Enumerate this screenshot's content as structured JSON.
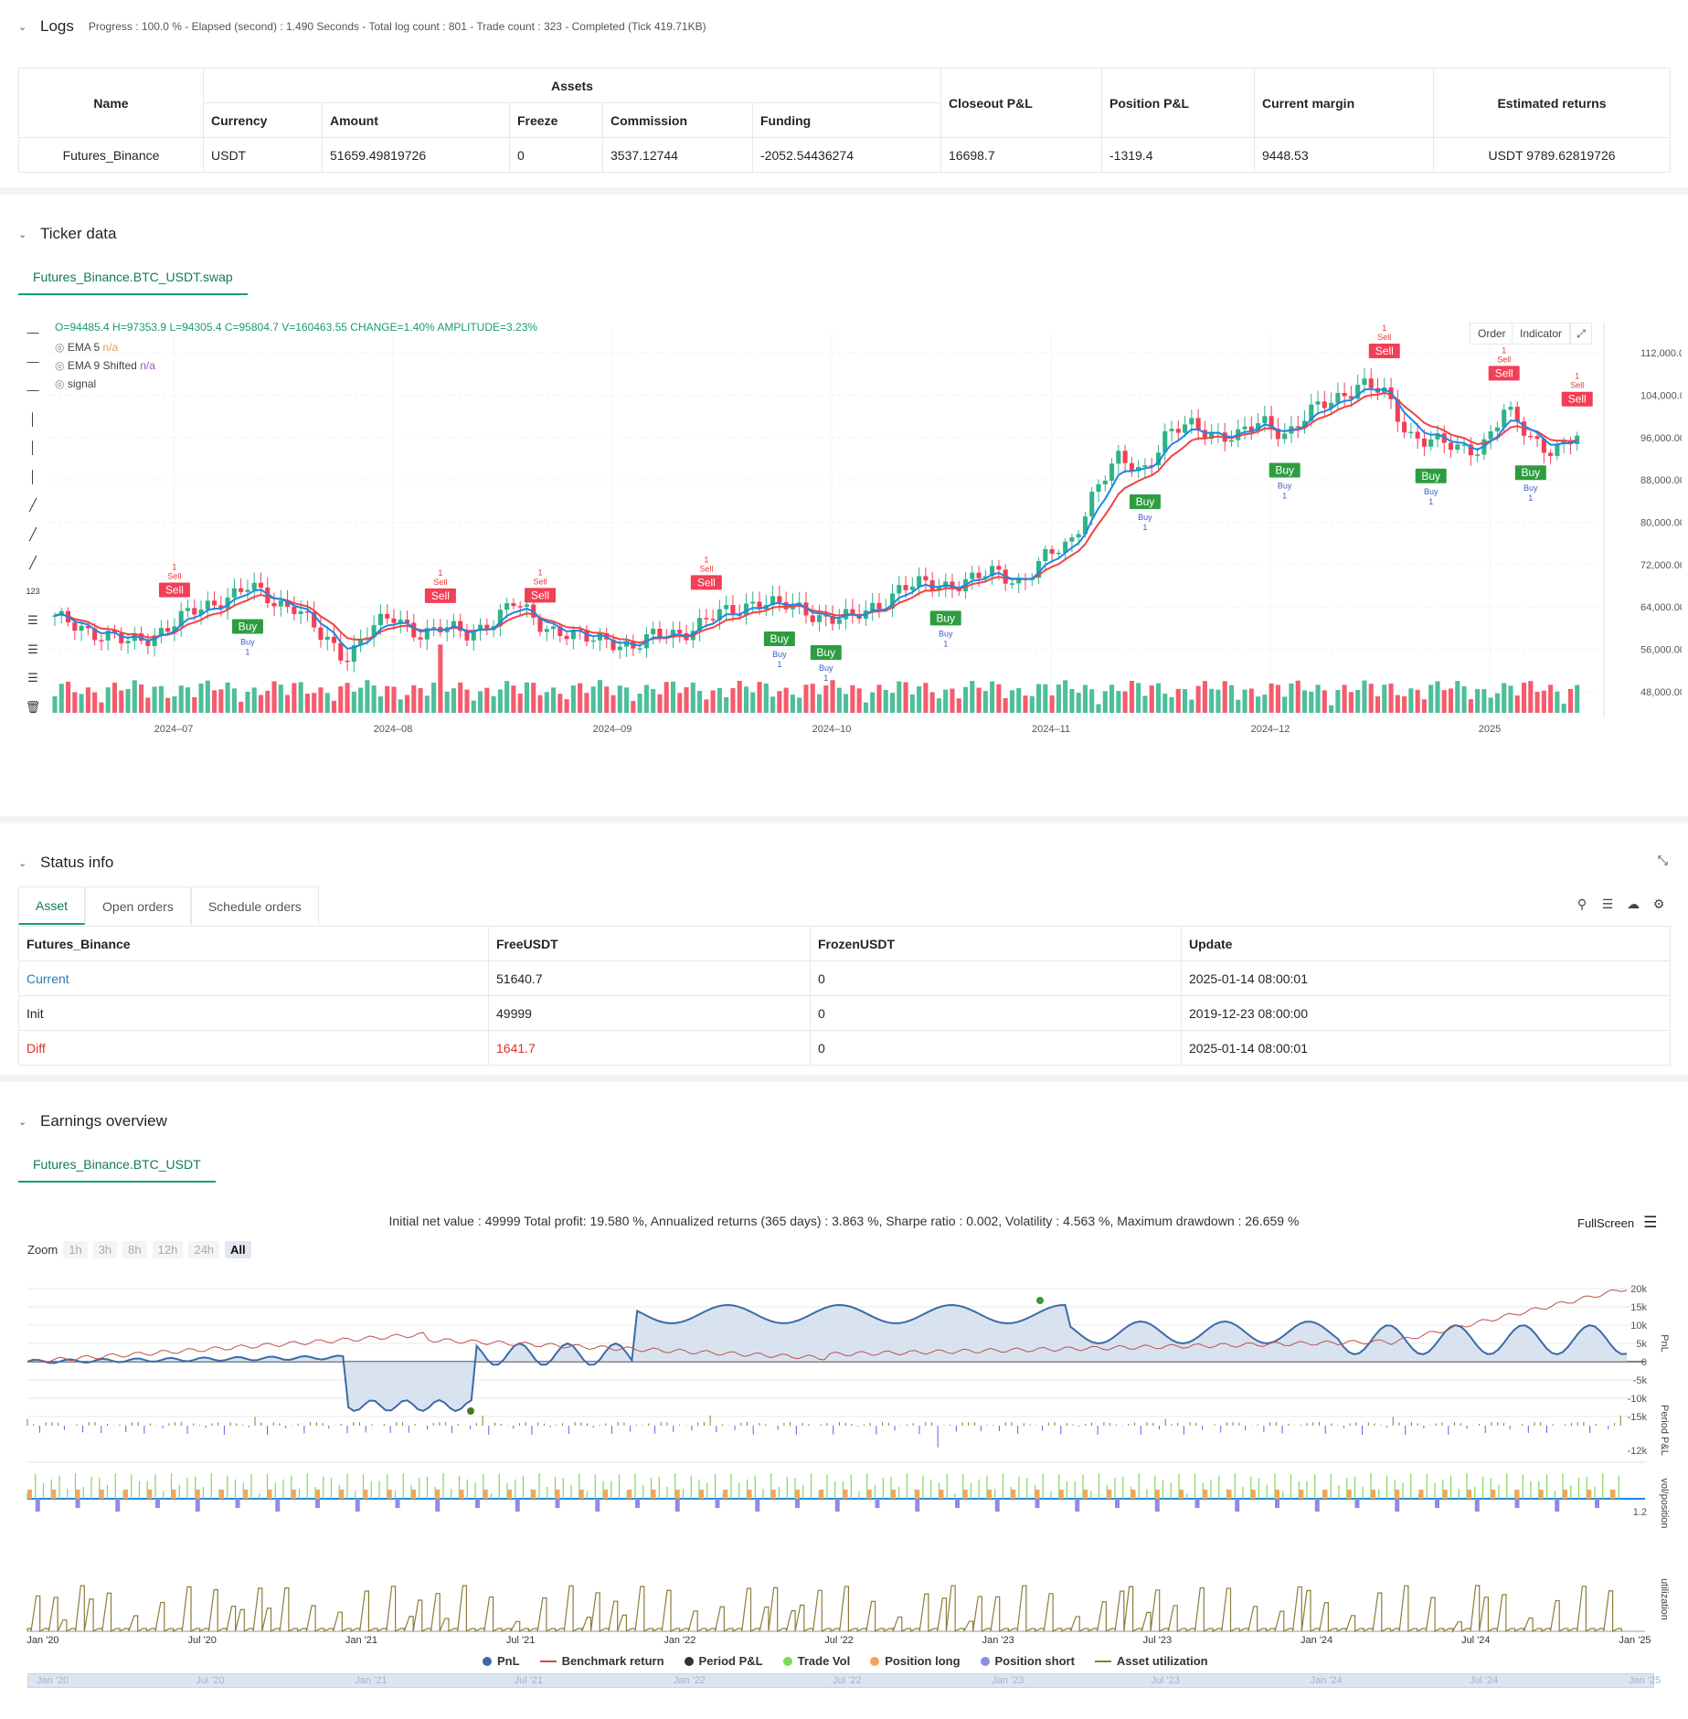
{
  "logs": {
    "title": "Logs",
    "info": "Progress : 100.0 % - Elapsed (second) : 1.490  Seconds - Total log count : 801 - Trade count : 323 - Completed (Tick 419.71KB)"
  },
  "assets_table": {
    "h_name": "Name",
    "h_assets": "Assets",
    "h_currency": "Currency",
    "h_amount": "Amount",
    "h_freeze": "Freeze",
    "h_commission": "Commission",
    "h_funding": "Funding",
    "h_closeout": "Closeout P&L",
    "h_position": "Position P&L",
    "h_margin": "Current margin",
    "h_returns": "Estimated returns",
    "row": {
      "name": "Futures_Binance",
      "currency": "USDT",
      "amount": "51659.49819726",
      "freeze": "0",
      "commission": "3537.12744",
      "funding": "-2052.54436274",
      "closeout": "16698.7",
      "position": "-1319.4",
      "margin": "9448.53",
      "returns": "USDT 9789.62819726"
    }
  },
  "ticker": {
    "title": "Ticker data",
    "tab": "Futures_Binance.BTC_USDT.swap",
    "ohlc": "O=94485.4  H=97353.9  L=94305.4  C=95804.7  V=160463.55  CHANGE=1.40%  AMPLITUDE=3.23%",
    "legend": [
      {
        "name": "EMA 5",
        "value": "n/a",
        "color": "#f2994a"
      },
      {
        "name": "EMA 9 Shifted",
        "value": "n/a",
        "color": "#9b59b6"
      },
      {
        "name": "signal",
        "value": "",
        "color": "#555555"
      }
    ],
    "btn_order": "Order",
    "btn_indicator": "Indicator"
  },
  "chart_data": [
    {
      "type": "candlestick",
      "title": "",
      "y_ticks": [
        "112,000.00",
        "104,000.00",
        "96,000.00",
        "88,000.00",
        "80,000.00",
        "72,000.00",
        "64,000.00",
        "56,000.00",
        "48,000.00"
      ],
      "ylim": [
        44000,
        116000
      ],
      "x_ticks": [
        "2024–07",
        "2024–08",
        "2024–09",
        "2024–10",
        "2024–11",
        "2024–12",
        "2025"
      ],
      "ema_fast_color": "#1e88e5",
      "ema_slow_color": "#ef4444",
      "close_path": [
        61500,
        60800,
        58500,
        57000,
        58800,
        61000,
        63500,
        66000,
        67500,
        65000,
        64500,
        58000,
        54500,
        60000,
        61500,
        59500,
        60000,
        58500,
        61500,
        64500,
        61000,
        59500,
        57500,
        58000,
        56500,
        58500,
        59500,
        61500,
        63000,
        65500,
        64000,
        63500,
        62000,
        61500,
        64500,
        67500,
        68000,
        68500,
        69000,
        70500,
        69000,
        73000,
        76000,
        86000,
        91500,
        90000,
        96500,
        98000,
        97000,
        96000,
        99000,
        97000,
        100500,
        103500,
        106500,
        104000,
        97000,
        95500,
        93500,
        94500,
        101000,
        96000,
        94000,
        95800
      ],
      "signals": [
        {
          "label": "Sell",
          "idx": 5,
          "kind": "sell"
        },
        {
          "label": "Buy",
          "idx": 8,
          "kind": "buy"
        },
        {
          "label": "Sell",
          "idx": 16,
          "kind": "sell"
        },
        {
          "label": "Sell",
          "idx": 20,
          "kind": "sell"
        },
        {
          "label": "Sell",
          "idx": 27,
          "kind": "sell"
        },
        {
          "label": "Buy",
          "idx": 30,
          "kind": "buy"
        },
        {
          "label": "Buy",
          "idx": 32,
          "kind": "buy"
        },
        {
          "label": "Buy",
          "idx": 37,
          "kind": "buy"
        },
        {
          "label": "Buy",
          "idx": 45,
          "kind": "buy"
        },
        {
          "label": "Buy",
          "idx": 51,
          "kind": "buy"
        },
        {
          "label": "Sell",
          "idx": 55,
          "kind": "sell"
        },
        {
          "label": "Buy",
          "idx": 57,
          "kind": "buy"
        },
        {
          "label": "Sell",
          "idx": 60,
          "kind": "sell"
        },
        {
          "label": "Buy",
          "idx": 61,
          "kind": "buy"
        },
        {
          "label": "Sell",
          "idx": 63,
          "kind": "sell"
        }
      ]
    },
    {
      "type": "line",
      "title": "",
      "summary": "Initial net value : 49999  Total profit: 19.580 %, Annualized returns (365 days) : 3.863 %, Sharpe ratio : 0.002, Volatility : 4.563 %, Maximum drawdown : 26.659 %",
      "y_ticks": [
        "20k",
        "15k",
        "10k",
        "5k",
        "0",
        "-5k",
        "-10k",
        "-15k"
      ],
      "x_ticks": [
        "Jan '20",
        "Jul '20",
        "Jan '21",
        "Jul '21",
        "Jan '22",
        "Jul '22",
        "Jan '23",
        "Jul '23",
        "Jan '24",
        "Jul '24",
        "Jan '25"
      ],
      "series": [
        {
          "name": "PnL",
          "color": "#3a6aa8"
        },
        {
          "name": "Benchmark return",
          "color": "#c0504d"
        },
        {
          "name": "Period P&L",
          "color": "#333333"
        },
        {
          "name": "Trade Vol",
          "color": "#7ed957"
        },
        {
          "name": "Position long",
          "color": "#f4a460"
        },
        {
          "name": "Position short",
          "color": "#8c8ce6"
        },
        {
          "name": "Asset utilization",
          "color": "#8b7d3a"
        }
      ],
      "side_labels": [
        "PnL",
        "Period P&L",
        "vol/position",
        "utilization"
      ],
      "sub_ticks": [
        "-12k",
        "1.2"
      ]
    }
  ],
  "status": {
    "title": "Status info",
    "tabs": [
      "Asset",
      "Open orders",
      "Schedule orders"
    ],
    "headers": [
      "Futures_Binance",
      "FreeUSDT",
      "FrozenUSDT",
      "Update"
    ],
    "rows": [
      {
        "label": "Current",
        "free": "51640.7",
        "frozen": "0",
        "update": "2025-01-14 08:00:01",
        "label_color": "#2a7ab0",
        "free_color": "#1f2329"
      },
      {
        "label": "Init",
        "free": "49999",
        "frozen": "0",
        "update": "2019-12-23 08:00:00",
        "label_color": "#1f2329",
        "free_color": "#1f2329"
      },
      {
        "label": "Diff",
        "free": "1641.7",
        "frozen": "0",
        "update": "2025-01-14 08:00:01",
        "label_color": "#d93025",
        "free_color": "#d93025"
      }
    ]
  },
  "earnings": {
    "title": "Earnings overview",
    "tab": "Futures_Binance.BTC_USDT",
    "fullscreen": "FullScreen",
    "zoom_label": "Zoom",
    "zoom_options": [
      "1h",
      "3h",
      "8h",
      "12h",
      "24h",
      "All"
    ]
  }
}
